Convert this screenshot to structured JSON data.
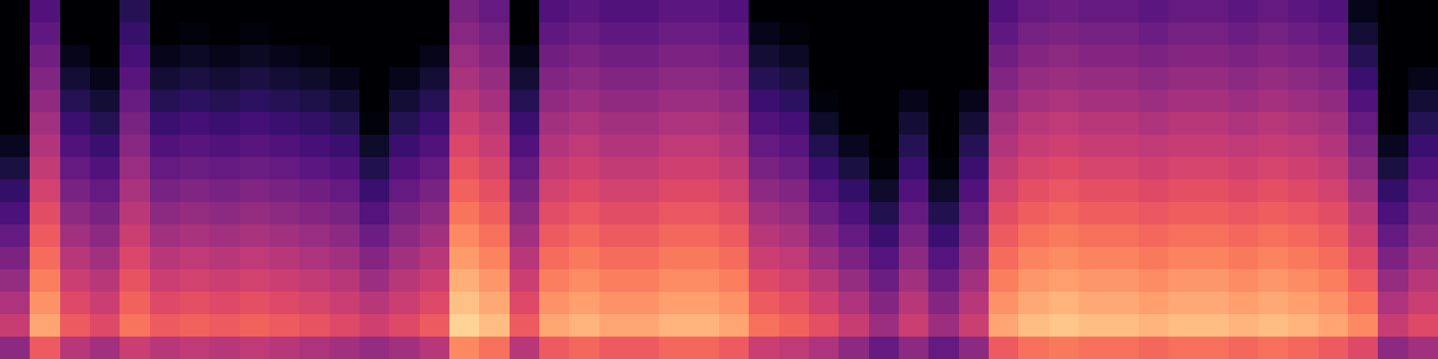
{
  "chart_data": {
    "type": "heatmap",
    "color": "magma",
    "tick_labels": false,
    "zlim": [
      0,
      100
    ],
    "cells": [
      [
        0,
        25,
        0,
        0,
        15,
        0,
        0,
        0,
        0,
        0,
        0,
        0,
        0,
        0,
        0,
        35,
        30,
        0,
        25,
        28,
        25,
        25,
        28,
        28,
        25,
        0,
        0,
        0,
        0,
        0,
        0,
        0,
        0,
        25,
        30,
        32,
        30,
        30,
        28,
        30,
        30,
        28,
        30,
        28,
        25,
        5,
        0,
        0
      ],
      [
        0,
        29,
        0,
        0,
        19,
        0,
        2,
        0,
        2,
        0,
        0,
        0,
        0,
        0,
        0,
        39,
        34,
        0,
        29,
        32,
        29,
        29,
        32,
        32,
        29,
        5,
        2,
        0,
        0,
        0,
        0,
        0,
        0,
        29,
        34,
        36,
        34,
        34,
        32,
        34,
        34,
        32,
        34,
        32,
        29,
        10,
        0,
        0
      ],
      [
        0,
        33,
        5,
        0,
        23,
        5,
        7,
        5,
        7,
        5,
        3,
        0,
        0,
        0,
        5,
        43,
        38,
        5,
        33,
        36,
        33,
        33,
        36,
        36,
        33,
        10,
        7,
        0,
        0,
        0,
        0,
        0,
        0,
        33,
        38,
        40,
        38,
        38,
        36,
        38,
        38,
        36,
        38,
        36,
        33,
        15,
        0,
        0
      ],
      [
        0,
        37,
        10,
        5,
        27,
        10,
        12,
        10,
        12,
        10,
        8,
        5,
        0,
        5,
        10,
        47,
        42,
        10,
        37,
        40,
        37,
        37,
        40,
        40,
        37,
        15,
        12,
        0,
        0,
        0,
        0,
        0,
        0,
        37,
        42,
        44,
        42,
        42,
        40,
        42,
        42,
        40,
        42,
        40,
        37,
        20,
        0,
        5
      ],
      [
        0,
        41,
        15,
        10,
        31,
        15,
        17,
        15,
        17,
        15,
        13,
        10,
        0,
        10,
        15,
        51,
        46,
        15,
        41,
        44,
        41,
        41,
        44,
        44,
        41,
        20,
        17,
        2,
        0,
        0,
        5,
        0,
        5,
        41,
        46,
        48,
        46,
        46,
        44,
        46,
        46,
        44,
        46,
        44,
        41,
        25,
        0,
        10
      ],
      [
        0,
        45,
        20,
        15,
        35,
        20,
        22,
        20,
        22,
        20,
        18,
        15,
        2,
        15,
        20,
        55,
        50,
        20,
        45,
        48,
        45,
        45,
        48,
        48,
        45,
        25,
        22,
        8,
        0,
        0,
        10,
        0,
        10,
        45,
        50,
        52,
        50,
        50,
        48,
        50,
        50,
        48,
        50,
        48,
        45,
        30,
        0,
        15
      ],
      [
        6,
        49,
        25,
        20,
        39,
        25,
        27,
        25,
        27,
        25,
        23,
        20,
        8,
        20,
        25,
        59,
        54,
        25,
        49,
        52,
        49,
        49,
        52,
        52,
        49,
        30,
        27,
        14,
        6,
        0,
        15,
        0,
        15,
        49,
        54,
        56,
        54,
        54,
        52,
        54,
        54,
        52,
        54,
        52,
        49,
        35,
        6,
        20
      ],
      [
        12,
        53,
        30,
        25,
        43,
        30,
        32,
        30,
        32,
        30,
        28,
        25,
        14,
        25,
        30,
        63,
        58,
        30,
        53,
        56,
        53,
        53,
        56,
        56,
        53,
        35,
        32,
        20,
        12,
        2,
        20,
        2,
        20,
        53,
        58,
        60,
        58,
        58,
        56,
        58,
        58,
        56,
        58,
        56,
        53,
        40,
        12,
        25
      ],
      [
        18,
        57,
        35,
        30,
        47,
        35,
        37,
        35,
        37,
        35,
        33,
        30,
        20,
        30,
        35,
        67,
        62,
        35,
        57,
        60,
        57,
        57,
        60,
        60,
        57,
        40,
        37,
        26,
        18,
        8,
        25,
        8,
        25,
        57,
        62,
        64,
        62,
        62,
        60,
        62,
        62,
        60,
        62,
        60,
        57,
        45,
        18,
        30
      ],
      [
        24,
        61,
        40,
        35,
        51,
        40,
        42,
        40,
        42,
        40,
        38,
        35,
        26,
        35,
        40,
        71,
        66,
        40,
        61,
        64,
        61,
        61,
        64,
        64,
        61,
        45,
        42,
        32,
        24,
        14,
        30,
        14,
        30,
        61,
        66,
        68,
        66,
        66,
        64,
        66,
        66,
        64,
        66,
        64,
        61,
        50,
        24,
        35
      ],
      [
        30,
        65,
        45,
        40,
        55,
        45,
        47,
        45,
        47,
        45,
        43,
        40,
        32,
        40,
        45,
        75,
        70,
        45,
        65,
        68,
        65,
        65,
        68,
        68,
        65,
        50,
        47,
        38,
        30,
        20,
        35,
        20,
        35,
        65,
        70,
        72,
        70,
        70,
        68,
        70,
        70,
        68,
        70,
        68,
        65,
        55,
        30,
        40
      ],
      [
        36,
        69,
        50,
        45,
        59,
        50,
        52,
        50,
        52,
        50,
        48,
        45,
        38,
        45,
        50,
        79,
        74,
        50,
        69,
        72,
        69,
        69,
        72,
        72,
        69,
        55,
        52,
        44,
        36,
        26,
        40,
        26,
        40,
        69,
        74,
        76,
        74,
        74,
        72,
        74,
        74,
        72,
        74,
        72,
        69,
        60,
        36,
        45
      ],
      [
        42,
        73,
        55,
        50,
        63,
        55,
        57,
        55,
        57,
        55,
        53,
        50,
        44,
        50,
        55,
        83,
        78,
        55,
        73,
        76,
        73,
        73,
        76,
        76,
        73,
        60,
        57,
        50,
        42,
        32,
        45,
        32,
        45,
        73,
        78,
        80,
        78,
        78,
        76,
        78,
        78,
        76,
        78,
        76,
        73,
        65,
        42,
        50
      ],
      [
        48,
        77,
        60,
        55,
        67,
        60,
        62,
        60,
        62,
        60,
        58,
        55,
        50,
        55,
        60,
        87,
        82,
        60,
        77,
        80,
        77,
        77,
        80,
        80,
        77,
        65,
        62,
        56,
        48,
        38,
        50,
        38,
        50,
        77,
        82,
        84,
        82,
        82,
        80,
        82,
        82,
        80,
        82,
        80,
        77,
        70,
        48,
        55
      ],
      [
        54,
        81,
        65,
        60,
        71,
        65,
        67,
        65,
        67,
        65,
        63,
        60,
        56,
        60,
        65,
        91,
        86,
        65,
        81,
        84,
        81,
        81,
        84,
        84,
        81,
        70,
        67,
        62,
        54,
        44,
        55,
        44,
        55,
        81,
        86,
        88,
        86,
        86,
        84,
        86,
        86,
        84,
        86,
        84,
        81,
        75,
        54,
        60
      ],
      [
        40,
        65,
        50,
        45,
        55,
        50,
        52,
        50,
        52,
        50,
        48,
        45,
        42,
        45,
        50,
        75,
        70,
        50,
        65,
        68,
        65,
        65,
        68,
        68,
        65,
        55,
        52,
        48,
        40,
        30,
        40,
        30,
        40,
        65,
        70,
        72,
        70,
        70,
        68,
        70,
        70,
        68,
        70,
        68,
        65,
        60,
        40,
        45
      ]
    ]
  }
}
